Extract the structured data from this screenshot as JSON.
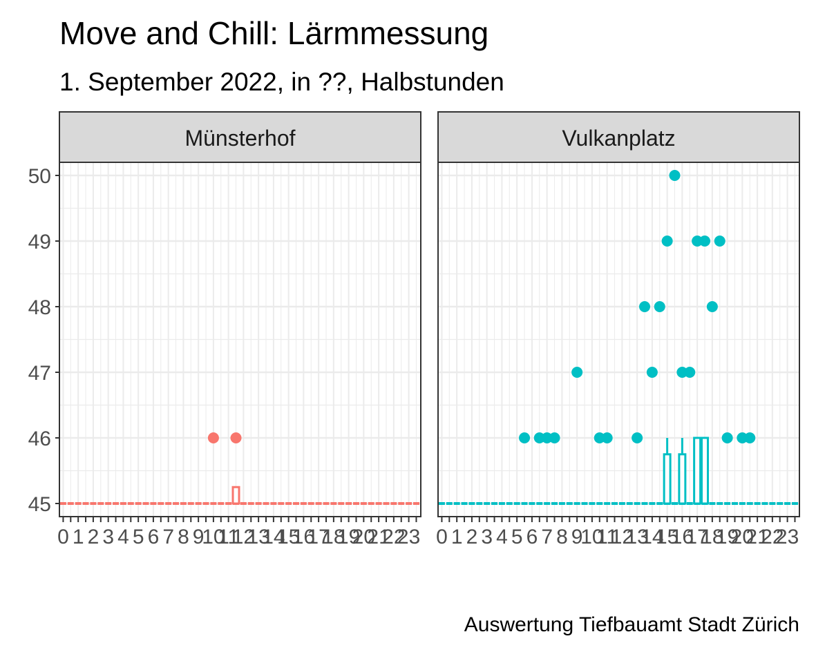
{
  "title": "Move and Chill: Lärmmessung",
  "subtitle": "1. September 2022, in ??, Halbstunden",
  "caption": "Auswertung Tiefbauamt Stadt Zürich",
  "colors": {
    "Münsterhof": "#F8766D",
    "Vulkanplatz": "#00BFC4"
  },
  "chart_data": {
    "type": "scatter",
    "ylim": [
      44.8,
      50.2
    ],
    "xlim": [
      -0.25,
      23.8
    ],
    "yticks": [
      45,
      46,
      47,
      48,
      49,
      50
    ],
    "xticks": [
      0,
      1,
      2,
      3,
      4,
      5,
      6,
      7,
      8,
      9,
      10,
      11,
      12,
      13,
      14,
      15,
      16,
      17,
      18,
      19,
      20,
      21,
      22,
      23
    ],
    "panels": [
      {
        "name": "Münsterhof",
        "points": [
          {
            "x": 10.0,
            "y": 46
          },
          {
            "x": 11.5,
            "y": 46
          }
        ],
        "boxes": [
          {
            "x": 11.5,
            "q1": 45,
            "q3": 45.25,
            "lo": 45,
            "hi": 45.25
          }
        ]
      },
      {
        "name": "Vulkanplatz",
        "points": [
          {
            "x": 5.5,
            "y": 46
          },
          {
            "x": 6.5,
            "y": 46
          },
          {
            "x": 7.0,
            "y": 46
          },
          {
            "x": 7.5,
            "y": 46
          },
          {
            "x": 9.0,
            "y": 47
          },
          {
            "x": 10.5,
            "y": 46
          },
          {
            "x": 11.0,
            "y": 46
          },
          {
            "x": 13.0,
            "y": 46
          },
          {
            "x": 13.5,
            "y": 48
          },
          {
            "x": 14.0,
            "y": 47
          },
          {
            "x": 14.5,
            "y": 48
          },
          {
            "x": 15.0,
            "y": 49
          },
          {
            "x": 15.5,
            "y": 50
          },
          {
            "x": 16.0,
            "y": 47
          },
          {
            "x": 16.5,
            "y": 47
          },
          {
            "x": 17.0,
            "y": 49
          },
          {
            "x": 17.5,
            "y": 49
          },
          {
            "x": 18.0,
            "y": 48
          },
          {
            "x": 18.5,
            "y": 49
          },
          {
            "x": 19.0,
            "y": 46
          },
          {
            "x": 20.0,
            "y": 46
          },
          {
            "x": 20.5,
            "y": 46
          }
        ],
        "boxes": [
          {
            "x": 15.0,
            "q1": 45,
            "q3": 45.75,
            "lo": 45,
            "hi": 46
          },
          {
            "x": 16.0,
            "q1": 45,
            "q3": 45.75,
            "lo": 45,
            "hi": 46
          },
          {
            "x": 17.0,
            "q1": 45,
            "q3": 46,
            "lo": 45,
            "hi": 46
          },
          {
            "x": 17.5,
            "q1": 45,
            "q3": 46,
            "lo": 45,
            "hi": 46
          }
        ]
      }
    ],
    "baseline": 45,
    "xstep": 0.5
  }
}
